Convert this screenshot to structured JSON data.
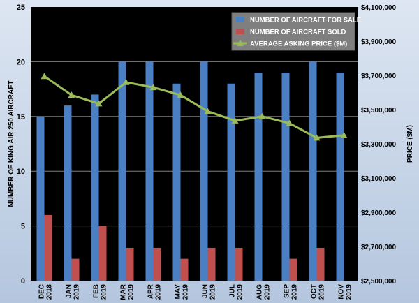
{
  "chart_data": {
    "type": "bar",
    "categories": [
      [
        "DEC",
        "2018"
      ],
      [
        "JAN",
        "2019"
      ],
      [
        "FEB",
        "2019"
      ],
      [
        "MAR",
        "2019"
      ],
      [
        "APR",
        "2019"
      ],
      [
        "MAY",
        "2019"
      ],
      [
        "JUN",
        "2019"
      ],
      [
        "JUL",
        "2019"
      ],
      [
        "AUG",
        "2019"
      ],
      [
        "SEP",
        "2019"
      ],
      [
        "OCT",
        "2019"
      ],
      [
        "NOV",
        "2019"
      ]
    ],
    "series": [
      {
        "name": "NUMBER OF AIRCRAFT FOR SALE",
        "type": "bar",
        "axis": "left",
        "color": "#4a7fc4",
        "values": [
          15,
          16,
          17,
          20,
          20,
          18,
          20,
          18,
          19,
          19,
          20,
          19
        ]
      },
      {
        "name": "NUMBER OF AIRCRAFT SOLD",
        "type": "bar",
        "axis": "left",
        "color": "#c0504d",
        "values": [
          6,
          2,
          5,
          3,
          3,
          2,
          3,
          3,
          0,
          2,
          3,
          0
        ]
      },
      {
        "name": "AVERAGE ASKING PRICE ($M)",
        "type": "line",
        "axis": "right",
        "color": "#9bbb59",
        "values": [
          3695000,
          3585000,
          3535000,
          3660000,
          3630000,
          3585000,
          3490000,
          3435000,
          3460000,
          3420000,
          3335000,
          3350000
        ]
      }
    ],
    "ylabel": "NUMBER OF KING AIR 250 AIRCRAFT",
    "y2label": "PRICE ($M)",
    "ylim": [
      0,
      25
    ],
    "yticks": [
      "0",
      "5",
      "10",
      "15",
      "20",
      "25"
    ],
    "y2lim": [
      2500000,
      4100000
    ],
    "y2ticks": [
      "$2,500,000",
      "$2,700,000",
      "$2,900,000",
      "$3,100,000",
      "$3,300,000",
      "$3,500,000",
      "$3,700,000",
      "$3,900,000",
      "$4,100,000"
    ],
    "legend_position": "top-right",
    "plot_background": "#000000",
    "grid": true
  }
}
